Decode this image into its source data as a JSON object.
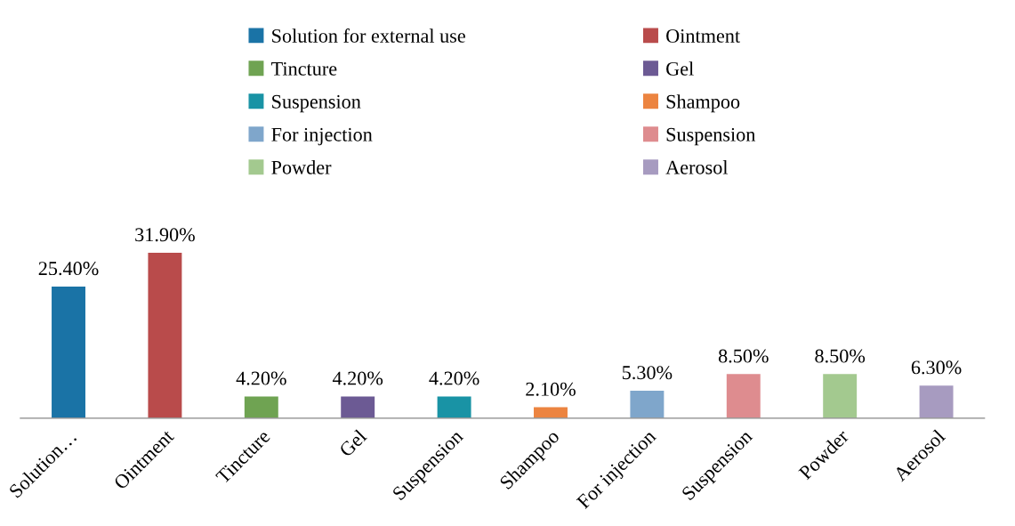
{
  "chart_data": {
    "type": "bar",
    "categories": [
      "Solution…",
      "Ointment",
      "Tincture",
      "Gel",
      "Suspension",
      "Shampoo",
      "For injection",
      "Suspension",
      "Powder",
      "Aerosol"
    ],
    "series": [
      {
        "name": "Solution for external use",
        "color": "#1a73a6",
        "values": [
          25.4,
          null,
          null,
          null,
          null,
          null,
          null,
          null,
          null,
          null
        ],
        "value_labels": [
          "25.40%",
          null,
          null,
          null,
          null,
          null,
          null,
          null,
          null,
          null
        ]
      },
      {
        "name": "Ointment",
        "color": "#b94b4b",
        "values": [
          null,
          31.9,
          null,
          null,
          null,
          null,
          null,
          null,
          null,
          null
        ],
        "value_labels": [
          null,
          "31.90%",
          null,
          null,
          null,
          null,
          null,
          null,
          null,
          null
        ]
      },
      {
        "name": "Tincture",
        "color": "#6fa352",
        "values": [
          null,
          null,
          4.2,
          null,
          null,
          null,
          null,
          null,
          null,
          null
        ],
        "value_labels": [
          null,
          null,
          "4.20%",
          null,
          null,
          null,
          null,
          null,
          null,
          null
        ]
      },
      {
        "name": "Gel",
        "color": "#6c5a94",
        "values": [
          null,
          null,
          null,
          4.2,
          null,
          null,
          null,
          null,
          null,
          null
        ],
        "value_labels": [
          null,
          null,
          null,
          "4.20%",
          null,
          null,
          null,
          null,
          null,
          null
        ]
      },
      {
        "name": "Suspension",
        "color": "#1993a5",
        "values": [
          null,
          null,
          null,
          null,
          4.2,
          null,
          null,
          null,
          null,
          null
        ],
        "value_labels": [
          null,
          null,
          null,
          null,
          "4.20%",
          null,
          null,
          null,
          null,
          null
        ]
      },
      {
        "name": "Shampoo",
        "color": "#ec8440",
        "values": [
          null,
          null,
          null,
          null,
          null,
          2.1,
          null,
          null,
          null,
          null
        ],
        "value_labels": [
          null,
          null,
          null,
          null,
          null,
          "2.10%",
          null,
          null,
          null,
          null
        ]
      },
      {
        "name": "For injection",
        "color": "#7fa6cb",
        "values": [
          null,
          null,
          null,
          null,
          null,
          null,
          5.3,
          null,
          null,
          null
        ],
        "value_labels": [
          null,
          null,
          null,
          null,
          null,
          null,
          "5.30%",
          null,
          null,
          null
        ]
      },
      {
        "name": "Suspension",
        "color": "#de8c8f",
        "values": [
          null,
          null,
          null,
          null,
          null,
          null,
          null,
          8.5,
          null,
          null
        ],
        "value_labels": [
          null,
          null,
          null,
          null,
          null,
          null,
          null,
          "8.50%",
          null,
          null
        ]
      },
      {
        "name": "Powder",
        "color": "#a3c98f",
        "values": [
          null,
          null,
          null,
          null,
          null,
          null,
          null,
          null,
          8.5,
          null
        ],
        "value_labels": [
          null,
          null,
          null,
          null,
          null,
          null,
          null,
          null,
          "8.50%",
          null
        ]
      },
      {
        "name": "Aerosol",
        "color": "#a79bc0",
        "values": [
          null,
          null,
          null,
          null,
          null,
          null,
          null,
          null,
          null,
          6.3
        ],
        "value_labels": [
          null,
          null,
          null,
          null,
          null,
          null,
          null,
          null,
          null,
          "6.30%"
        ]
      }
    ],
    "legend": "top"
  }
}
